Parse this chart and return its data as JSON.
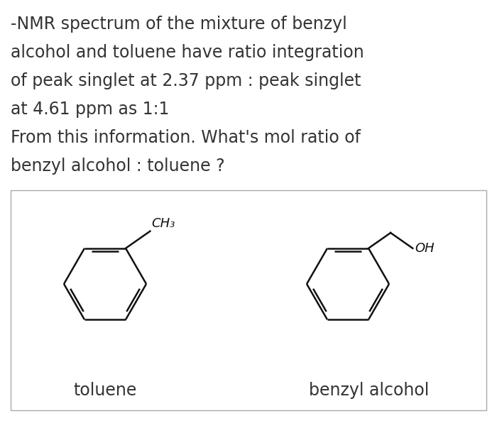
{
  "bg_color": "#ffffff",
  "text_color": "#333333",
  "box_bg": "#ffffff",
  "box_border": "#aaaaaa",
  "title_lines": [
    "-NMR spectrum of the mixture of benzyl",
    "alcohol and toluene have ratio integration",
    "of peak singlet at 2.37 ppm : peak singlet",
    "at 4.61 ppm as 1:1",
    "From this information. What's mol ratio of",
    "benzyl alcohol : toluene ?"
  ],
  "label_toluene": "toluene",
  "label_benzyl": "benzyl alcohol",
  "title_fontsize": 17,
  "label_fontsize": 17,
  "figsize": [
    7.0,
    6.1
  ],
  "dpi": 100
}
